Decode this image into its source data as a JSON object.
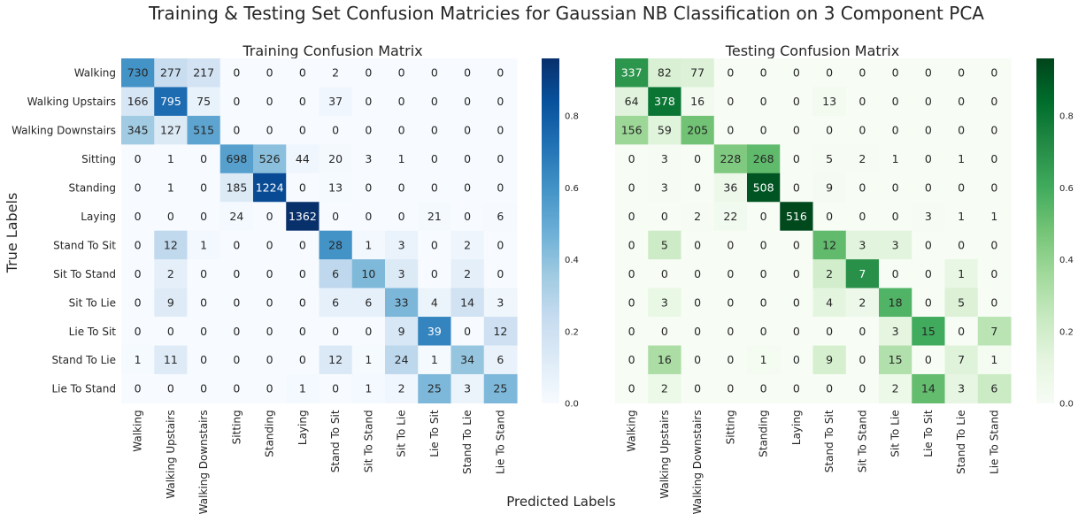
{
  "figure": {
    "title": "Training & Testing Set Confusion Matricies for Gaussian NB Classification on 3 Component PCA",
    "ylabel": "True Labels",
    "xlabel": "Predicted Labels"
  },
  "chart_data": [
    {
      "type": "heatmap",
      "title": "Training Confusion Matrix",
      "colormap": "Blues",
      "colors": {
        "low": "#f7fbff",
        "high": "#08306b"
      },
      "xlabel": "",
      "ylabel": "",
      "categories": [
        "Walking",
        "Walking Upstairs",
        "Walking Downstairs",
        "Sitting",
        "Standing",
        "Laying",
        "Stand To Sit",
        "Sit To Stand",
        "Sit To Lie",
        "Lie To Sit",
        "Stand To Lie",
        "Lie To Stand"
      ],
      "values": [
        [
          730,
          277,
          217,
          0,
          0,
          0,
          2,
          0,
          0,
          0,
          0,
          0
        ],
        [
          166,
          795,
          75,
          0,
          0,
          0,
          37,
          0,
          0,
          0,
          0,
          0
        ],
        [
          345,
          127,
          515,
          0,
          0,
          0,
          0,
          0,
          0,
          0,
          0,
          0
        ],
        [
          0,
          1,
          0,
          698,
          526,
          44,
          20,
          3,
          1,
          0,
          0,
          0
        ],
        [
          0,
          1,
          0,
          185,
          1224,
          0,
          13,
          0,
          0,
          0,
          0,
          0
        ],
        [
          0,
          0,
          0,
          24,
          0,
          1362,
          0,
          0,
          0,
          21,
          0,
          6
        ],
        [
          0,
          12,
          1,
          0,
          0,
          0,
          28,
          1,
          3,
          0,
          2,
          0
        ],
        [
          0,
          2,
          0,
          0,
          0,
          0,
          6,
          10,
          3,
          0,
          2,
          0
        ],
        [
          0,
          9,
          0,
          0,
          0,
          0,
          6,
          6,
          33,
          4,
          14,
          3
        ],
        [
          0,
          0,
          0,
          0,
          0,
          0,
          0,
          0,
          9,
          39,
          0,
          12
        ],
        [
          1,
          11,
          0,
          0,
          0,
          0,
          12,
          1,
          24,
          1,
          34,
          6
        ],
        [
          0,
          0,
          0,
          0,
          0,
          1,
          0,
          1,
          2,
          25,
          3,
          25
        ]
      ],
      "colorbar": {
        "ticks": [
          "0.0",
          "0.2",
          "0.4",
          "0.6",
          "0.8"
        ],
        "range": [
          0,
          0.96
        ]
      }
    },
    {
      "type": "heatmap",
      "title": "Testing Confusion Matrix",
      "colormap": "Greens",
      "colors": {
        "low": "#f7fcf5",
        "high": "#00441b"
      },
      "xlabel": "",
      "ylabel": "",
      "categories": [
        "Walking",
        "Walking Upstairs",
        "Walking Downstairs",
        "Sitting",
        "Standing",
        "Laying",
        "Stand To Sit",
        "Sit To Stand",
        "Sit To Lie",
        "Lie To Sit",
        "Stand To Lie",
        "Lie To Stand"
      ],
      "values": [
        [
          337,
          82,
          77,
          0,
          0,
          0,
          0,
          0,
          0,
          0,
          0,
          0
        ],
        [
          64,
          378,
          16,
          0,
          0,
          0,
          13,
          0,
          0,
          0,
          0,
          0
        ],
        [
          156,
          59,
          205,
          0,
          0,
          0,
          0,
          0,
          0,
          0,
          0,
          0
        ],
        [
          0,
          3,
          0,
          228,
          268,
          0,
          5,
          2,
          1,
          0,
          1,
          0
        ],
        [
          0,
          3,
          0,
          36,
          508,
          0,
          9,
          0,
          0,
          0,
          0,
          0
        ],
        [
          0,
          0,
          2,
          22,
          0,
          516,
          0,
          0,
          0,
          3,
          1,
          1
        ],
        [
          0,
          5,
          0,
          0,
          0,
          0,
          12,
          3,
          3,
          0,
          0,
          0
        ],
        [
          0,
          0,
          0,
          0,
          0,
          0,
          2,
          7,
          0,
          0,
          1,
          0
        ],
        [
          0,
          3,
          0,
          0,
          0,
          0,
          4,
          2,
          18,
          0,
          5,
          0
        ],
        [
          0,
          0,
          0,
          0,
          0,
          0,
          0,
          0,
          3,
          15,
          0,
          7
        ],
        [
          0,
          16,
          0,
          0,
          1,
          0,
          9,
          0,
          15,
          0,
          7,
          1
        ],
        [
          0,
          2,
          0,
          0,
          0,
          0,
          0,
          0,
          2,
          14,
          3,
          6
        ]
      ],
      "colorbar": {
        "ticks": [
          "0.0",
          "0.2",
          "0.4",
          "0.6",
          "0.8"
        ],
        "range": [
          0,
          0.96
        ]
      }
    }
  ]
}
